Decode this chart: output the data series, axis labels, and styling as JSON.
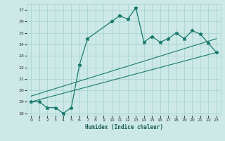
{
  "xlabel": "Humidex (Indice chaleur)",
  "xlim": [
    -0.5,
    23.5
  ],
  "ylim": [
    17.8,
    27.5
  ],
  "yticks": [
    18,
    19,
    20,
    21,
    22,
    23,
    24,
    25,
    26,
    27
  ],
  "xticks": [
    0,
    1,
    2,
    3,
    4,
    5,
    6,
    7,
    8,
    9,
    10,
    11,
    12,
    13,
    14,
    15,
    16,
    17,
    18,
    19,
    20,
    21,
    22,
    23
  ],
  "bg_color": "#cce9e7",
  "grid_color": "#aad4d0",
  "line_color": "#1a7a6e",
  "line1_x": [
    0,
    1,
    2,
    3,
    4,
    5,
    6,
    7,
    10,
    11,
    12,
    13,
    14,
    15,
    16,
    17,
    18,
    19,
    20,
    21,
    22,
    23
  ],
  "line1_y": [
    19.0,
    19.0,
    18.5,
    18.5,
    18.0,
    18.5,
    22.2,
    24.5,
    26.0,
    26.5,
    26.2,
    27.2,
    24.2,
    24.7,
    24.2,
    24.5,
    25.0,
    24.5,
    25.2,
    24.9,
    24.1,
    23.3
  ],
  "line2_x": [
    0,
    23
  ],
  "line2_y": [
    19.0,
    23.3
  ],
  "line3_x": [
    0,
    23
  ],
  "line3_y": [
    19.5,
    24.5
  ]
}
